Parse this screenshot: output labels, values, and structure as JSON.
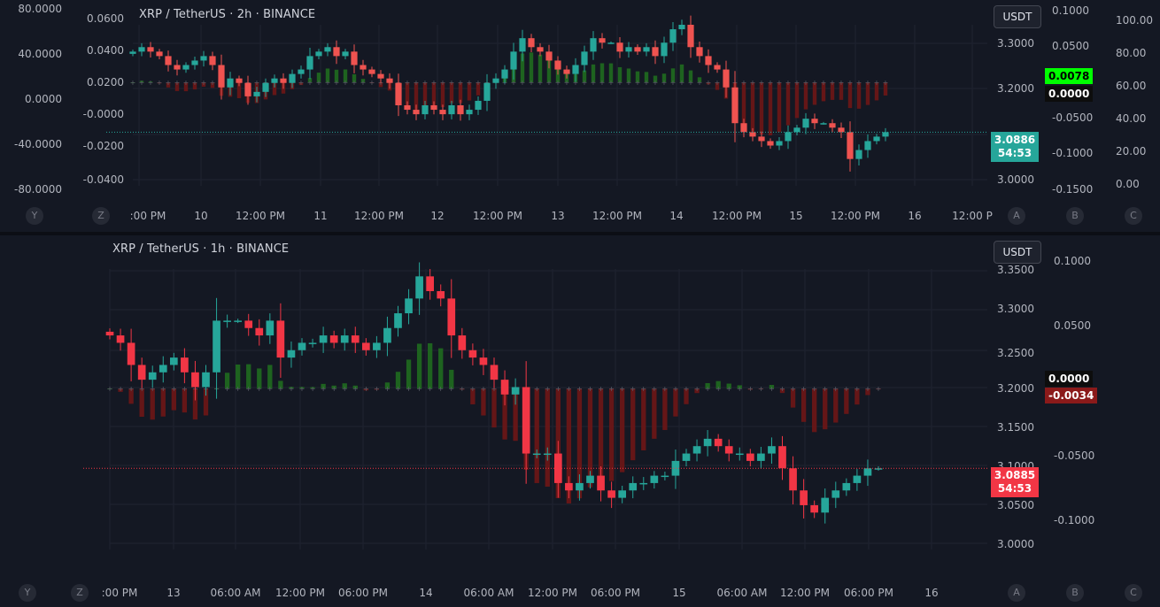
{
  "top_chart": {
    "title": "XRP / TetherUS · 2h · BINANCE",
    "currency_button": "USDT",
    "left_axis_outer": [
      "80.0000",
      "40.0000",
      "0.0000",
      "-40.0000",
      "-80.0000"
    ],
    "left_axis_inner": [
      "0.0600",
      "0.0400",
      "0.0200",
      "-0.0000",
      "-0.0200",
      "-0.0400"
    ],
    "price_axis": [
      "3.3000",
      "3.2000",
      "3.0000"
    ],
    "osc_axis": [
      "0.1000",
      "0.0500",
      "-0.0500",
      "-0.1000",
      "-0.1500"
    ],
    "far_right_axis": [
      "100.00",
      "80.00",
      "60.00",
      "40.00",
      "20.00",
      "0.00"
    ],
    "time_axis": [
      ":00 PM",
      "10",
      "12:00 PM",
      "11",
      "12:00 PM",
      "12",
      "12:00 PM",
      "13",
      "12:00 PM",
      "14",
      "12:00 PM",
      "15",
      "12:00 PM",
      "16",
      "12:00 P"
    ],
    "axis_buttons_left": [
      "Y",
      "Z"
    ],
    "axis_buttons_right": [
      "A",
      "B",
      "C"
    ],
    "last_price": "3.0886",
    "countdown": "54:53",
    "osc_value_tag": "0.0078",
    "zero_tag": "0.0000",
    "colors": {
      "up": "#26a69a",
      "down": "#ef5350",
      "hist_up": "#1b5e20",
      "hist_down": "#6b1a1a",
      "price_tag": "#26a69a",
      "osc_tag": "#00ff00"
    }
  },
  "bottom_chart": {
    "title": "XRP / TetherUS · 1h · BINANCE",
    "currency_button": "USDT",
    "price_axis": [
      "3.3500",
      "3.3000",
      "3.2500",
      "3.2000",
      "3.1500",
      "3.1000",
      "3.0500",
      "3.0000"
    ],
    "osc_axis": [
      "0.1000",
      "0.0500",
      "-0.0500",
      "-0.1000"
    ],
    "time_axis": [
      ":00 PM",
      "13",
      "06:00 AM",
      "12:00 PM",
      "06:00 PM",
      "14",
      "06:00 AM",
      "12:00 PM",
      "06:00 PM",
      "15",
      "06:00 AM",
      "12:00 PM",
      "06:00 PM",
      "16"
    ],
    "axis_buttons_left": [
      "Y",
      "Z"
    ],
    "axis_buttons_right": [
      "A",
      "B",
      "C"
    ],
    "last_price": "3.0885",
    "countdown": "54:53",
    "zero_tag": "0.0000",
    "osc_value_tag": "-0.0034",
    "colors": {
      "up": "#26a69a",
      "down": "#f23645",
      "price_tag": "#f23645",
      "osc_tag": "#8b1a1a"
    }
  },
  "chart_data": [
    {
      "type": "candlestick",
      "title": "XRP / TetherUS · 2h · BINANCE",
      "ylim": [
        2.97,
        3.33
      ],
      "close": [
        3.27,
        3.28,
        3.27,
        3.26,
        3.24,
        3.23,
        3.24,
        3.25,
        3.26,
        3.24,
        3.19,
        3.21,
        3.2,
        3.17,
        3.18,
        3.2,
        3.21,
        3.2,
        3.22,
        3.23,
        3.26,
        3.27,
        3.28,
        3.26,
        3.27,
        3.24,
        3.23,
        3.22,
        3.21,
        3.2,
        3.15,
        3.14,
        3.13,
        3.15,
        3.14,
        3.13,
        3.15,
        3.13,
        3.14,
        3.16,
        3.2,
        3.21,
        3.23,
        3.27,
        3.3,
        3.28,
        3.27,
        3.25,
        3.23,
        3.22,
        3.24,
        3.27,
        3.3,
        3.29,
        3.29,
        3.27,
        3.28,
        3.27,
        3.28,
        3.26,
        3.29,
        3.32,
        3.33,
        3.28,
        3.26,
        3.24,
        3.23,
        3.19,
        3.11,
        3.09,
        3.08,
        3.07,
        3.06,
        3.07,
        3.09,
        3.1,
        3.12,
        3.11,
        3.11,
        3.1,
        3.09,
        3.03,
        3.05,
        3.07,
        3.08,
        3.09
      ],
      "oscillator_ylim": [
        -0.17,
        0.11
      ]
    },
    {
      "type": "candlestick",
      "title": "XRP / TetherUS · 1h · BINANCE",
      "ylim": [
        2.98,
        3.36
      ],
      "close": [
        3.27,
        3.26,
        3.23,
        3.21,
        3.22,
        3.23,
        3.24,
        3.22,
        3.2,
        3.22,
        3.29,
        3.29,
        3.29,
        3.28,
        3.27,
        3.29,
        3.24,
        3.25,
        3.26,
        3.26,
        3.27,
        3.26,
        3.27,
        3.26,
        3.25,
        3.26,
        3.28,
        3.3,
        3.32,
        3.35,
        3.33,
        3.32,
        3.27,
        3.25,
        3.24,
        3.23,
        3.21,
        3.19,
        3.2,
        3.11,
        3.11,
        3.11,
        3.07,
        3.06,
        3.07,
        3.08,
        3.06,
        3.05,
        3.06,
        3.07,
        3.07,
        3.08,
        3.08,
        3.1,
        3.11,
        3.12,
        3.13,
        3.12,
        3.11,
        3.11,
        3.1,
        3.11,
        3.12,
        3.09,
        3.06,
        3.04,
        3.03,
        3.05,
        3.06,
        3.07,
        3.08,
        3.09,
        3.09
      ],
      "oscillator_ylim": [
        -0.13,
        0.12
      ]
    }
  ]
}
